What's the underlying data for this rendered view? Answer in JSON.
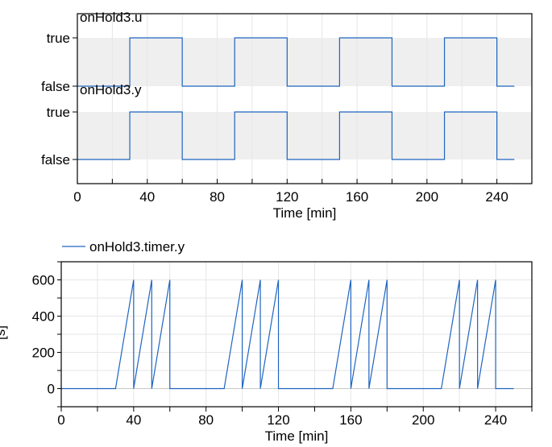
{
  "chart_data": [
    {
      "type": "line",
      "subtype": "boolean-step",
      "xlabel": "Time [min]",
      "xlim": [
        0,
        260
      ],
      "x_ticks": [
        0,
        40,
        80,
        120,
        160,
        200,
        240
      ],
      "x_minor_ticks": [
        20,
        60,
        100,
        140,
        180,
        220,
        260
      ],
      "grid": true,
      "color": "#1f65c0",
      "series": [
        {
          "name": "onHold3.u",
          "y_ticks": [
            "false",
            "true"
          ],
          "transitions_x": [
            0,
            30,
            60,
            90,
            120,
            150,
            180,
            210,
            240,
            250
          ],
          "values": [
            false,
            true,
            false,
            true,
            false,
            true,
            false,
            true,
            false
          ]
        },
        {
          "name": "onHold3.y",
          "y_ticks": [
            "false",
            "true"
          ],
          "transitions_x": [
            0,
            30,
            60,
            90,
            120,
            150,
            180,
            210,
            240,
            250
          ],
          "values": [
            false,
            true,
            false,
            true,
            false,
            true,
            false,
            true,
            false
          ]
        }
      ]
    },
    {
      "type": "line",
      "legend": [
        "onHold3.timer.y"
      ],
      "legend_position": "top-left",
      "xlabel": "Time [min]",
      "ylabel": "[s]",
      "xlim": [
        0,
        260
      ],
      "ylim": [
        -100,
        700
      ],
      "x_ticks": [
        0,
        40,
        80,
        120,
        160,
        200,
        240
      ],
      "y_ticks": [
        0,
        200,
        400,
        600
      ],
      "grid": true,
      "color": "#1f65c0",
      "series": [
        {
          "name": "onHold3.timer.y",
          "x": [
            0,
            30,
            40,
            40,
            50,
            50,
            60,
            60,
            90,
            100,
            100,
            110,
            110,
            120,
            120,
            150,
            160,
            160,
            170,
            170,
            180,
            180,
            210,
            220,
            220,
            230,
            230,
            240,
            240,
            250
          ],
          "y": [
            0,
            0,
            600,
            0,
            600,
            0,
            600,
            0,
            0,
            600,
            0,
            600,
            0,
            600,
            0,
            0,
            600,
            0,
            600,
            0,
            600,
            0,
            0,
            600,
            0,
            600,
            0,
            600,
            0,
            0
          ]
        }
      ]
    }
  ]
}
